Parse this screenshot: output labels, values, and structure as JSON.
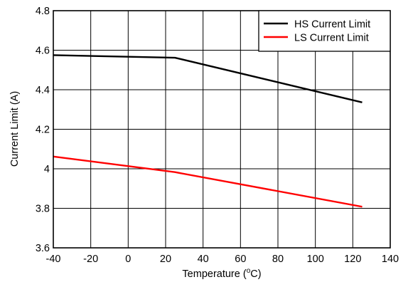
{
  "chart_data": {
    "type": "line",
    "title": "",
    "xlabel": "Temperature (",
    "xlabel_sup": "o",
    "xlabel_suffix": "C)",
    "ylabel": "Current Limit (A)",
    "xlim": [
      -40,
      140
    ],
    "ylim": [
      3.6,
      4.8
    ],
    "x_ticks": [
      -40,
      -20,
      0,
      20,
      40,
      60,
      80,
      100,
      120,
      140
    ],
    "x_tick_labels": [
      "-40",
      "-20",
      "0",
      "20",
      "40",
      "60",
      "80",
      "100",
      "120",
      "140"
    ],
    "y_ticks": [
      3.6,
      3.8,
      4.0,
      4.2,
      4.4,
      4.6,
      4.8
    ],
    "y_tick_labels": [
      "3.6",
      "3.8",
      "4",
      "4.2",
      "4.4",
      "4.6",
      "4.8"
    ],
    "grid": true,
    "legend_position": "top-right",
    "series": [
      {
        "name": "HS Current Limit",
        "color": "#000000",
        "x": [
          -40,
          25,
          125
        ],
        "y": [
          4.575,
          4.562,
          4.336
        ]
      },
      {
        "name": "LS Current Limit",
        "color": "#ff0000",
        "x": [
          -40,
          25,
          125
        ],
        "y": [
          4.062,
          3.983,
          3.808
        ]
      }
    ]
  }
}
